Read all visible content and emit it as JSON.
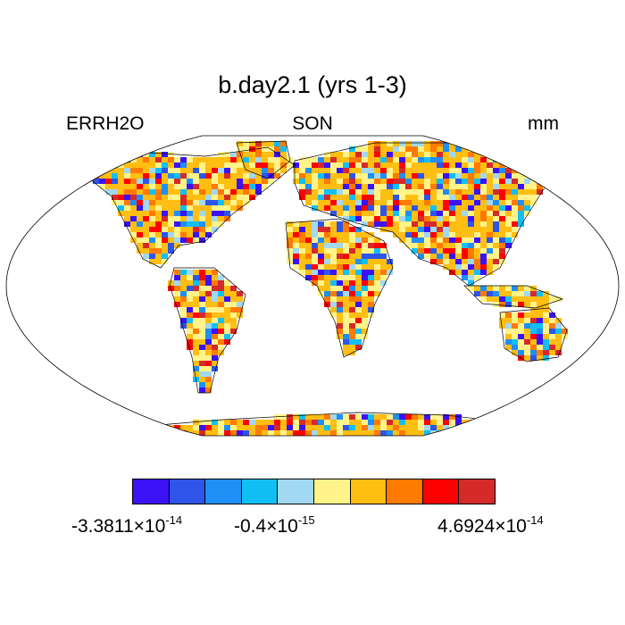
{
  "title": "b.day2.1 (yrs 1-3)",
  "left_label": "ERRH2O",
  "center_label": "SON",
  "right_label": "mm",
  "projection": "robinson",
  "colorbar": {
    "colors": [
      "#3a12f5",
      "#2e55e8",
      "#1f8ef5",
      "#12bff5",
      "#a2d8f2",
      "#fff38a",
      "#ffbe12",
      "#ff7a00",
      "#ff0000",
      "#d42a2a"
    ],
    "labels": [
      {
        "mantissa": "-3.3811",
        "times": "×10",
        "exponent": "-14"
      },
      {
        "mantissa": "-0.4",
        "times": "×10",
        "exponent": "-15"
      },
      {
        "mantissa": "4.6924",
        "times": "×10",
        "exponent": "-14"
      }
    ]
  },
  "map": {
    "ocean_color": "#ffffff",
    "coastline_color": "#000000"
  }
}
